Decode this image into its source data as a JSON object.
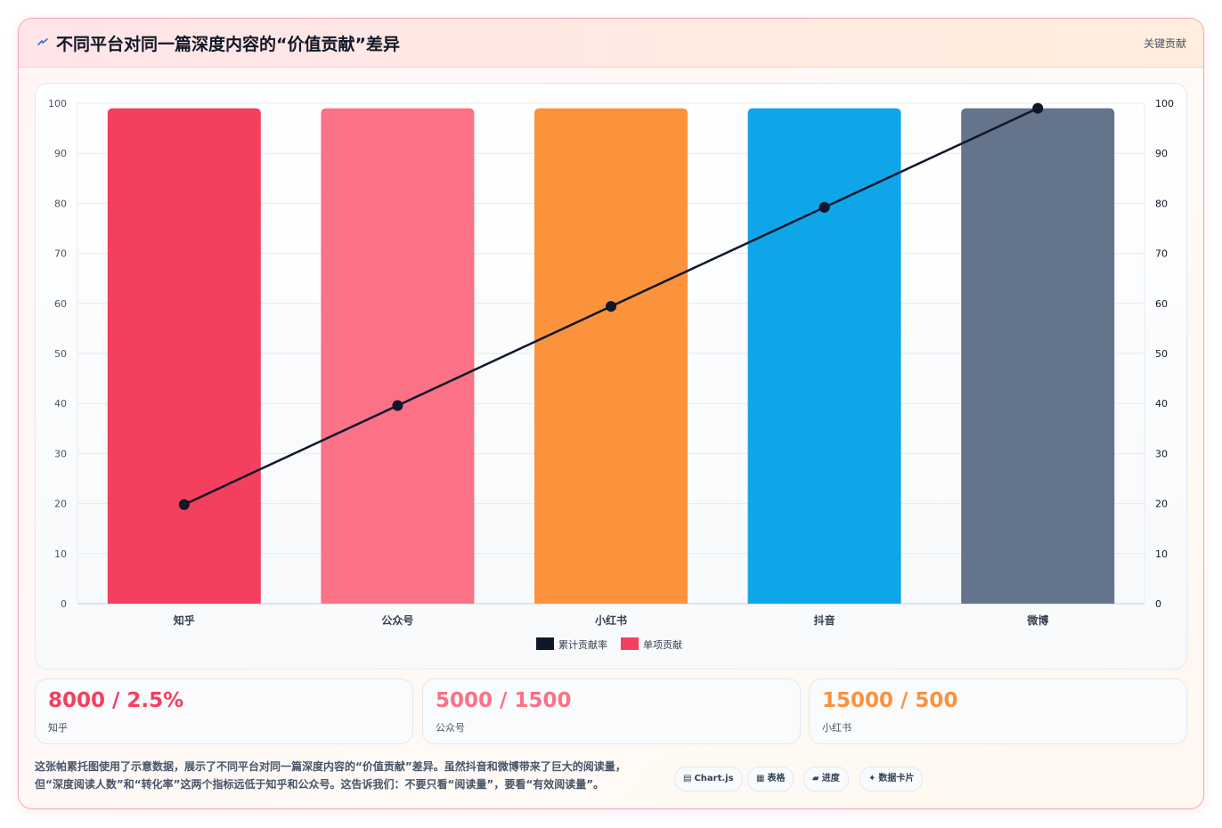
{
  "header": {
    "title": "不同平台对同一篇深度内容的“价值贡献”差异",
    "tag": "关键贡献",
    "icon": "lightning-icon"
  },
  "colors": {
    "zhihu": "#f43f5e",
    "gongzhonghao": "#fb7185",
    "xiaohongshu": "#fb923c",
    "douyin": "#0ea5e9",
    "weibo": "#64748b",
    "line": "#0f172a"
  },
  "chart_data": {
    "type": "bar",
    "categories": [
      "知乎",
      "公众号",
      "小红书",
      "抖音",
      "微博"
    ],
    "series": [
      {
        "name": "累计贡献率",
        "type": "line",
        "axis": "right",
        "values": [
          19.8,
          39.6,
          59.4,
          79.2,
          99
        ]
      },
      {
        "name": "单项贡献",
        "type": "bar",
        "axis": "left",
        "values": [
          99,
          99,
          99,
          99,
          99
        ]
      }
    ],
    "ylim": [
      0,
      100
    ],
    "y_ticks": [
      0,
      10,
      20,
      30,
      40,
      50,
      60,
      70,
      80,
      90,
      100
    ],
    "y2lim": [
      0,
      100
    ],
    "y2_ticks": [
      0,
      10,
      20,
      30,
      40,
      50,
      60,
      70,
      80,
      90,
      100
    ],
    "bar_colors": [
      "#f43f5e",
      "#fb7185",
      "#fb923c",
      "#0ea5e9",
      "#64748b"
    ],
    "grid": true,
    "legend_position": "bottom"
  },
  "stats": [
    {
      "value": "8000 / 2.5%",
      "label": "知乎",
      "color": "#f43f5e"
    },
    {
      "value": "5000 / 1500",
      "label": "公众号",
      "color": "#fb7185"
    },
    {
      "value": "15000 / 500",
      "label": "小红书",
      "color": "#fb923c"
    }
  ],
  "note": {
    "line1": "这张帕累托图使用了示意数据，展示了不同平台对同一篇深度内容的“价值贡献”差异。虽然抖音和微博带来了巨大的阅读量，",
    "line2": "但“深度阅读人数”和“转化率”这两个指标远低于知乎和公众号。这告诉我们：不要只看“阅读量”，要看“有效阅读量”。"
  },
  "chips": [
    {
      "label": "Chart.js",
      "icon": "chart-icon",
      "glyph": "▤"
    },
    {
      "label": "表格",
      "icon": "table-icon",
      "glyph": "▦"
    },
    {
      "label": "进度",
      "icon": "progress-icon",
      "glyph": "▰"
    },
    {
      "label": "数据卡片",
      "icon": "sparkle-icon",
      "glyph": "✦"
    }
  ]
}
